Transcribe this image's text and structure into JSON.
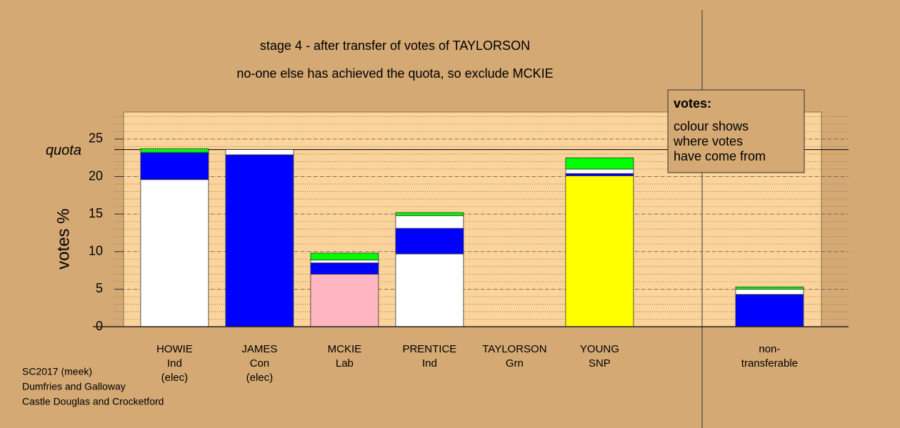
{
  "chart_data": {
    "type": "stacked-bar",
    "title": "stage 4 - after transfer of votes of TAYLORSON",
    "subtitle": "no-one else has achieved the quota, so exclude MCKIE",
    "y_label": "votes %",
    "categories": [
      [
        "HOWIE",
        "Ind",
        "(elec)"
      ],
      [
        "JAMES",
        "Con",
        "(elec)"
      ],
      [
        "MCKIE",
        "Lab"
      ],
      [
        "PRENTICE",
        "Ind"
      ],
      [
        "TAYLORSON",
        "Grn"
      ],
      [
        "YOUNG",
        "SNP"
      ],
      [
        "non-",
        "transferable"
      ]
    ],
    "series": [
      {
        "colors": [
          "#ffffff",
          "#0000ff",
          "#ffb6c1",
          "#ffffff",
          "#00ff00",
          "#ffff00",
          "#ffffff"
        ],
        "values": [
          19.6,
          22.9,
          7.0,
          9.7,
          0,
          20.1,
          0
        ]
      },
      {
        "color": "#0000ff",
        "values": [
          3.6,
          0,
          1.5,
          3.4,
          0,
          0.3,
          4.3
        ]
      },
      {
        "color": "#ffffff",
        "values": [
          0,
          0.7,
          0.4,
          1.7,
          0,
          0.6,
          0.7
        ]
      },
      {
        "color": "#00ff00",
        "values": [
          0.5,
          0,
          0.9,
          0.4,
          0,
          1.5,
          0.3
        ]
      }
    ],
    "quota": {
      "value": 23.6,
      "label": "quota"
    },
    "ylim": [
      0,
      28.6
    ],
    "yticks": [
      0,
      5,
      10,
      15,
      20,
      25
    ],
    "minor_grid_step": 1,
    "legend": {
      "title": "votes:",
      "lines": [
        "colour shows",
        "where votes",
        "have come from"
      ]
    },
    "footer": [
      "SC2017 (meek)",
      "Dumfries and Galloway",
      "Castle Douglas and Crocketford"
    ]
  }
}
